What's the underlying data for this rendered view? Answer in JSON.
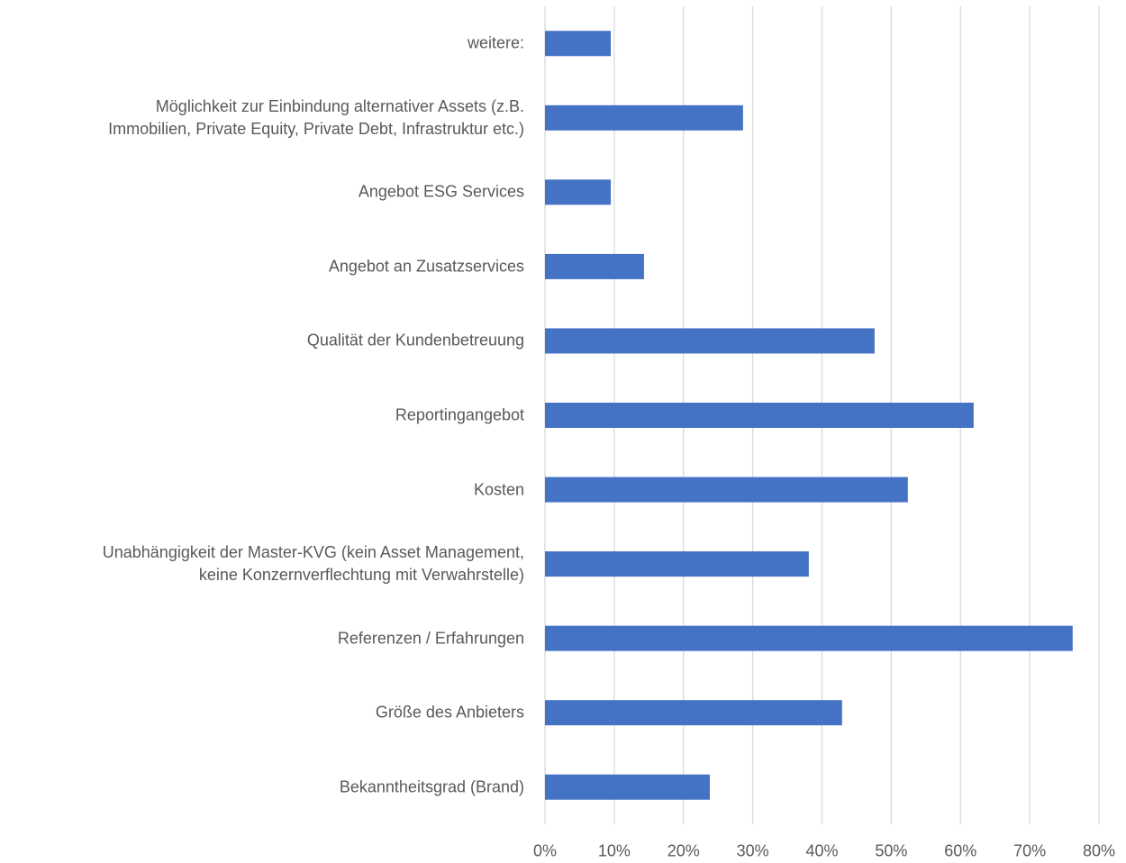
{
  "chart_data": {
    "type": "barh",
    "categories": [
      "weitere:",
      "Möglichkeit zur Einbindung alternativer Assets (z.B.\nImmobilien, Private Equity, Private Debt, Infrastruktur etc.)",
      "Angebot ESG Services",
      "Angebot an Zusatzservices",
      "Qualität der Kundenbetreuung",
      "Reportingangebot",
      "Kosten",
      "Unabhängigkeit der Master-KVG (kein Asset Management,\nkeine Konzernverflechtung mit Verwahrstelle)",
      "Referenzen / Erfahrungen",
      "Größe des Anbieters",
      "Bekanntheitsgrad (Brand)"
    ],
    "values": [
      9.5,
      28.6,
      9.5,
      14.3,
      47.6,
      61.9,
      52.4,
      38.1,
      76.2,
      42.9,
      23.8
    ],
    "color": "#4472c4",
    "xlim": [
      0,
      80
    ],
    "xticks": [
      {
        "value": 0,
        "label": "0%"
      },
      {
        "value": 10,
        "label": "10%"
      },
      {
        "value": 20,
        "label": "20%"
      },
      {
        "value": 30,
        "label": "30%"
      },
      {
        "value": 40,
        "label": "40%"
      },
      {
        "value": 50,
        "label": "50%"
      },
      {
        "value": 60,
        "label": "60%"
      },
      {
        "value": 70,
        "label": "70%"
      },
      {
        "value": 80,
        "label": "80%"
      }
    ],
    "grid": true
  }
}
